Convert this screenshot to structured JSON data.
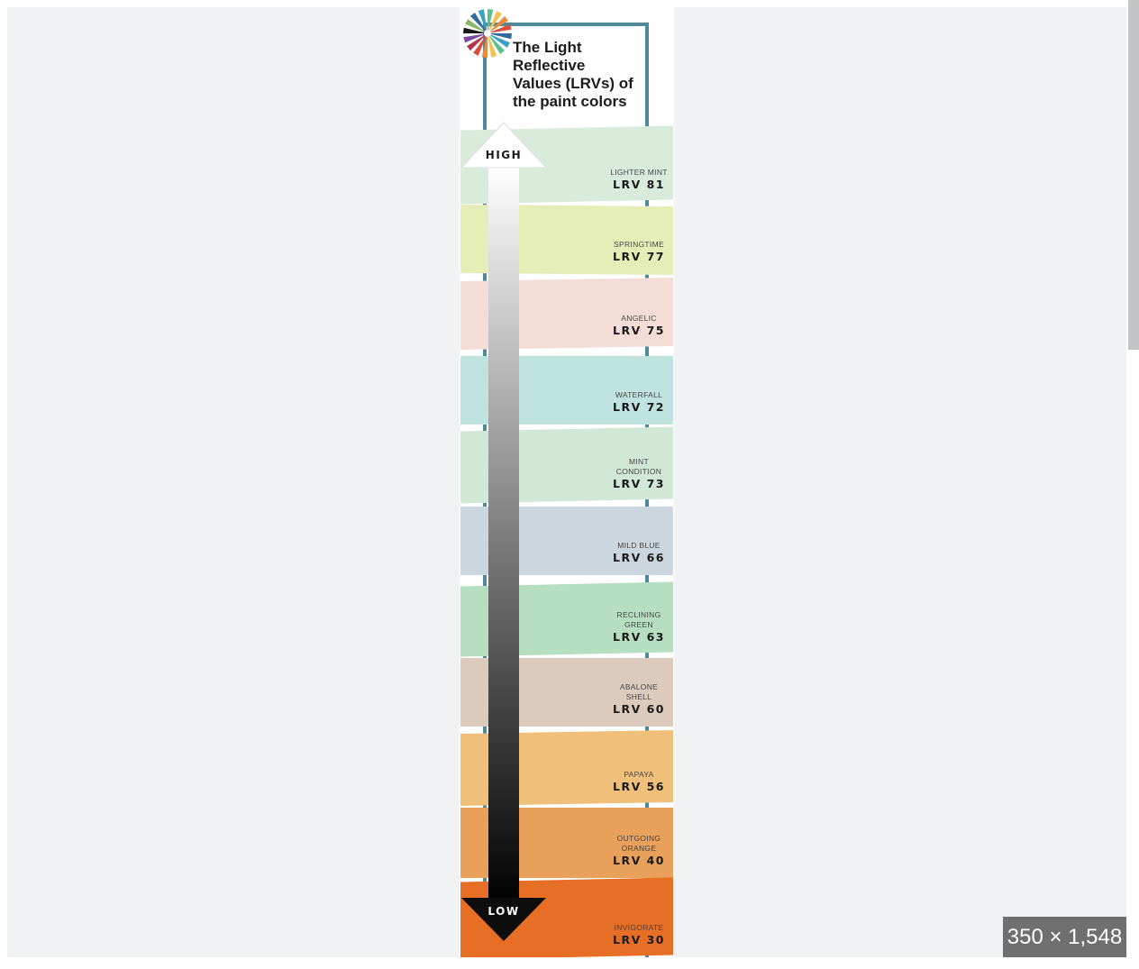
{
  "viewer": {
    "image_dimensions": "350 × 1,548"
  },
  "infographic": {
    "title_lines": [
      "The Light",
      "Reflective",
      "Values (LRVs) of",
      "the paint colors"
    ],
    "high_label": "HIGH",
    "low_label": "LOW",
    "frame_color": "#4f8a9a",
    "swatches": [
      {
        "name_lines": [
          "LIGHTER MINT"
        ],
        "lrv": "LRV 81",
        "color": "#d9ecdc"
      },
      {
        "name_lines": [
          "SPRINGTIME"
        ],
        "lrv": "LRV 77",
        "color": "#e6eeb8"
      },
      {
        "name_lines": [
          "ANGELIC"
        ],
        "lrv": "LRV 75",
        "color": "#f4ddd6"
      },
      {
        "name_lines": [
          "WATERFALL"
        ],
        "lrv": "LRV 72",
        "color": "#bfe3de"
      },
      {
        "name_lines": [
          "MINT",
          "CONDITION"
        ],
        "lrv": "LRV 73",
        "color": "#d2e8d6"
      },
      {
        "name_lines": [
          "MILD BLUE"
        ],
        "lrv": "LRV 66",
        "color": "#ccd6de"
      },
      {
        "name_lines": [
          "RECLINING",
          "GREEN"
        ],
        "lrv": "LRV 63",
        "color": "#b6dfc1"
      },
      {
        "name_lines": [
          "ABALONE",
          "SHELL"
        ],
        "lrv": "LRV 60",
        "color": "#dccbbd"
      },
      {
        "name_lines": [
          "PAPAYA"
        ],
        "lrv": "LRV 56",
        "color": "#f0bf79"
      },
      {
        "name_lines": [
          "OUTGOING",
          "ORANGE"
        ],
        "lrv": "LRV 40",
        "color": "#e9a05b"
      },
      {
        "name_lines": [
          "INVIGORATE"
        ],
        "lrv": "LRV 30",
        "color": "#e76f25"
      }
    ],
    "logo_petal_colors": [
      "#2e6b9e",
      "#3aa0c8",
      "#5cbf91",
      "#f2c14e",
      "#e88b3a",
      "#d94f3d",
      "#b2374e",
      "#7a4a9c",
      "#1a1a1a",
      "#8ab86a"
    ]
  }
}
